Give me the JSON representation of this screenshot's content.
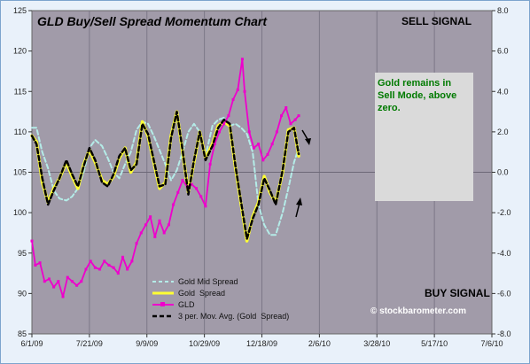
{
  "chart_data": {
    "type": "line",
    "title": "GLD Buy/Sell Spread Momentum Chart",
    "x_ticks": [
      "6/1/09",
      "7/21/09",
      "9/9/09",
      "10/29/09",
      "12/18/09",
      "2/6/10",
      "3/28/10",
      "5/17/10",
      "7/6/10"
    ],
    "y_left": {
      "ticks": [
        "85",
        "90",
        "95",
        "100",
        "105",
        "110",
        "115",
        "120",
        "125"
      ],
      "range": [
        85,
        125
      ]
    },
    "y_right": {
      "ticks": [
        "-8.0",
        "-6.0",
        "-4.0",
        "-2.0",
        "0.0",
        "2.0",
        "4.0",
        "6.0",
        "8.0"
      ],
      "range": [
        -8,
        8
      ]
    },
    "grid": true,
    "legend_position": "bottom-center",
    "annotations": {
      "sell_signal": "SELL SIGNAL",
      "buy_signal": "BUY SIGNAL",
      "note": [
        "Gold remains in",
        "Sell Mode, above",
        "zero."
      ],
      "watermark": "© stockbarometer.com"
    },
    "series": [
      {
        "name": "Gold Mid Spread",
        "axis": "right",
        "color": "#b4ece8",
        "style": "dashed",
        "x": [
          "2009-06-01",
          "2009-06-05",
          "2009-06-10",
          "2009-06-15",
          "2009-06-20",
          "2009-06-25",
          "2009-07-01",
          "2009-07-06",
          "2009-07-11",
          "2009-07-16",
          "2009-07-21",
          "2009-07-26",
          "2009-08-01",
          "2009-08-06",
          "2009-08-11",
          "2009-08-16",
          "2009-08-21",
          "2009-08-26",
          "2009-08-31",
          "2009-09-05",
          "2009-09-10",
          "2009-09-15",
          "2009-09-20",
          "2009-09-25",
          "2009-09-30",
          "2009-10-05",
          "2009-10-10",
          "2009-10-15",
          "2009-10-20",
          "2009-10-25",
          "2009-10-30",
          "2009-11-05",
          "2009-11-10",
          "2009-11-15",
          "2009-11-20",
          "2009-11-25",
          "2009-11-30",
          "2009-12-05",
          "2009-12-10",
          "2009-12-15",
          "2009-12-20",
          "2009-12-25",
          "2009-12-30",
          "2010-01-05",
          "2010-01-10",
          "2010-01-15",
          "2010-01-19"
        ],
        "values": [
          2.2,
          2.2,
          1.0,
          0.2,
          -0.9,
          -1.3,
          -1.4,
          -1.2,
          -0.8,
          0.0,
          1.2,
          1.6,
          1.3,
          0.7,
          0.0,
          -0.3,
          0.4,
          1.0,
          2.1,
          2.5,
          2.4,
          1.8,
          1.1,
          0.4,
          -0.4,
          0.1,
          1.0,
          2.0,
          2.4,
          2.0,
          0.8,
          2.3,
          2.6,
          2.7,
          2.3,
          2.4,
          2.2,
          1.9,
          1.0,
          -1.6,
          -2.6,
          -3.1,
          -3.1,
          -2.0,
          -0.8,
          0.5,
          1.2
        ]
      },
      {
        "name": "Gold  Spread",
        "axis": "right",
        "color": "#ffff33",
        "style": "solid",
        "x": [
          "2009-06-01",
          "2009-06-05",
          "2009-06-10",
          "2009-06-15",
          "2009-06-20",
          "2009-06-25",
          "2009-07-01",
          "2009-07-06",
          "2009-07-11",
          "2009-07-16",
          "2009-07-21",
          "2009-07-26",
          "2009-08-01",
          "2009-08-06",
          "2009-08-11",
          "2009-08-16",
          "2009-08-21",
          "2009-08-26",
          "2009-08-31",
          "2009-09-05",
          "2009-09-10",
          "2009-09-15",
          "2009-09-20",
          "2009-09-25",
          "2009-09-30",
          "2009-10-05",
          "2009-10-10",
          "2009-10-15",
          "2009-10-20",
          "2009-10-25",
          "2009-10-30",
          "2009-11-05",
          "2009-11-10",
          "2009-11-15",
          "2009-11-20",
          "2009-11-25",
          "2009-11-30",
          "2009-12-05",
          "2009-12-10",
          "2009-12-15",
          "2009-12-20",
          "2009-12-25",
          "2009-12-30",
          "2010-01-05",
          "2010-01-10",
          "2010-01-15",
          "2010-01-19"
        ],
        "values": [
          1.8,
          1.5,
          -0.5,
          -1.5,
          -0.8,
          -0.3,
          0.5,
          -0.2,
          -0.8,
          0.4,
          1.1,
          0.5,
          -0.4,
          -0.6,
          -0.2,
          0.7,
          1.2,
          0.0,
          0.5,
          2.5,
          1.8,
          0.5,
          -0.8,
          -0.5,
          1.8,
          3.0,
          1.0,
          -1.0,
          0.5,
          2.0,
          0.7,
          1.4,
          2.3,
          2.5,
          2.3,
          0.2,
          -1.6,
          -3.4,
          -2.2,
          -1.5,
          -0.2,
          -1.0,
          -1.5,
          0.0,
          2.1,
          2.2,
          0.8
        ]
      },
      {
        "name": "GLD",
        "axis": "left",
        "color": "#ee00cc",
        "style": "solid",
        "x": [
          "2009-06-01",
          "2009-06-04",
          "2009-06-08",
          "2009-06-12",
          "2009-06-16",
          "2009-06-20",
          "2009-06-24",
          "2009-06-28",
          "2009-07-02",
          "2009-07-06",
          "2009-07-10",
          "2009-07-14",
          "2009-07-18",
          "2009-07-22",
          "2009-07-26",
          "2009-07-30",
          "2009-08-03",
          "2009-08-07",
          "2009-08-11",
          "2009-08-15",
          "2009-08-19",
          "2009-08-23",
          "2009-08-27",
          "2009-08-31",
          "2009-09-04",
          "2009-09-08",
          "2009-09-12",
          "2009-09-16",
          "2009-09-20",
          "2009-09-24",
          "2009-09-28",
          "2009-10-02",
          "2009-10-06",
          "2009-10-10",
          "2009-10-14",
          "2009-10-18",
          "2009-10-22",
          "2009-10-26",
          "2009-10-30",
          "2009-11-03",
          "2009-11-07",
          "2009-11-11",
          "2009-11-15",
          "2009-11-19",
          "2009-11-23",
          "2009-11-27",
          "2009-12-01",
          "2009-12-03",
          "2009-12-07",
          "2009-12-11",
          "2009-12-15",
          "2009-12-19",
          "2009-12-23",
          "2009-12-27",
          "2009-12-31",
          "2010-01-04",
          "2010-01-08",
          "2010-01-12",
          "2010-01-16",
          "2010-01-19"
        ],
        "values": [
          96.5,
          93.5,
          93.8,
          91.5,
          91.8,
          90.8,
          91.5,
          89.6,
          92.0,
          91.5,
          91.0,
          91.5,
          93.0,
          94.0,
          93.2,
          93.0,
          94.0,
          93.5,
          93.2,
          92.5,
          94.5,
          93.0,
          94.0,
          96.2,
          97.5,
          98.5,
          99.5,
          97.0,
          99.0,
          97.5,
          98.5,
          101.0,
          102.5,
          104.0,
          103.2,
          103.5,
          103.0,
          102.0,
          100.8,
          106.0,
          108.5,
          110.0,
          111.0,
          112.0,
          114.0,
          115.2,
          119.0,
          115.0,
          110.0,
          108.0,
          108.5,
          106.5,
          107.2,
          108.5,
          110.0,
          112.0,
          113.0,
          111.0,
          111.5,
          112.0
        ]
      },
      {
        "name": "3 per. Mov. Avg. (Gold  Spread)",
        "axis": "right",
        "color": "#000000",
        "style": "dashed",
        "x": [
          "2009-06-01",
          "2009-06-05",
          "2009-06-10",
          "2009-06-15",
          "2009-06-20",
          "2009-06-25",
          "2009-07-01",
          "2009-07-06",
          "2009-07-11",
          "2009-07-16",
          "2009-07-21",
          "2009-07-26",
          "2009-08-01",
          "2009-08-06",
          "2009-08-11",
          "2009-08-16",
          "2009-08-21",
          "2009-08-26",
          "2009-08-31",
          "2009-09-05",
          "2009-09-10",
          "2009-09-15",
          "2009-09-20",
          "2009-09-25",
          "2009-09-30",
          "2009-10-05",
          "2009-10-10",
          "2009-10-15",
          "2009-10-20",
          "2009-10-25",
          "2009-10-30",
          "2009-11-05",
          "2009-11-10",
          "2009-11-15",
          "2009-11-20",
          "2009-11-25",
          "2009-11-30",
          "2009-12-05",
          "2009-12-10",
          "2009-12-15",
          "2009-12-20",
          "2009-12-25",
          "2009-12-30",
          "2010-01-05",
          "2010-01-10",
          "2010-01-15",
          "2010-01-19"
        ],
        "values": [
          1.8,
          1.4,
          -0.3,
          -1.6,
          -0.9,
          -0.3,
          0.6,
          -0.1,
          -0.7,
          0.3,
          1.2,
          0.6,
          -0.5,
          -0.7,
          -0.1,
          0.8,
          1.2,
          0.1,
          0.4,
          2.4,
          1.9,
          0.6,
          -0.7,
          -0.6,
          1.7,
          3.0,
          1.1,
          -1.1,
          0.6,
          2.0,
          0.6,
          1.3,
          2.2,
          2.6,
          2.4,
          0.3,
          -1.5,
          -3.3,
          -2.3,
          -1.6,
          -0.3,
          -0.9,
          -1.6,
          0.1,
          2.0,
          2.2,
          0.9
        ]
      }
    ]
  }
}
